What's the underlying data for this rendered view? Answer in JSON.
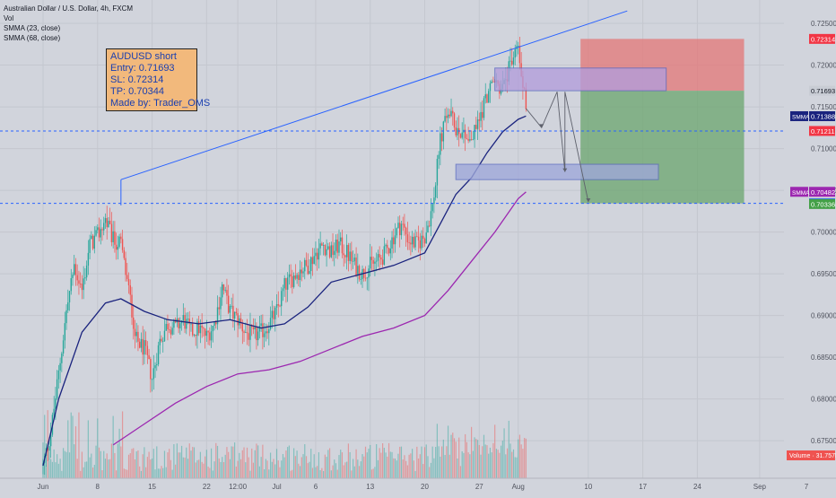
{
  "header": {
    "symbol": "Australian Dollar / U.S. Dollar, 4h, FXCM",
    "indicator_vol": "Vol",
    "indicator_smma_fast": "SMMA (23, close)",
    "indicator_smma_slow": "SMMA (68, close)"
  },
  "note": {
    "line1": "AUDUSD short",
    "line2": "Entry: 0.71693",
    "line3": "SL: 0.72314",
    "line4": "TP: 0.70344",
    "line5": "Made by: Trader_OMS"
  },
  "colors": {
    "background": "#d1d4dc",
    "up_candle": "#26a69a",
    "down_candle": "#ef5350",
    "smma_fast": "#1a237e",
    "smma_slow": "#9c27b0",
    "trendline": "#2962ff",
    "stop_zone": "#e57373",
    "target_zone": "#66a36a",
    "supply_zone": "#b39ddb",
    "demand_zone": "#9fa8da"
  },
  "price_axis": {
    "ticks": [
      "0.72500",
      "0.72000",
      "0.71500",
      "0.71000",
      "0.70500",
      "0.70000",
      "0.69500",
      "0.69000",
      "0.68500",
      "0.68000",
      "0.67500"
    ],
    "labels": [
      {
        "text": "0.72314",
        "color": "#f23645",
        "price": 0.72314
      },
      {
        "text": "0.71693",
        "color": "#c8ccd4",
        "price": 0.71693
      },
      {
        "text": "0.71392",
        "color": "#d9dce3",
        "price": 0.71392
      },
      {
        "text": "0.71388",
        "color": "#1a237e",
        "price": 0.71388,
        "tag": "SMMA"
      },
      {
        "text": "0.71211",
        "color": "#f23645",
        "price": 0.71211
      },
      {
        "text": "0.70482",
        "color": "#9c27b0",
        "price": 0.70482,
        "tag": "SMMA"
      },
      {
        "text": "0.70344",
        "color": "#2962ff",
        "price": 0.70344
      },
      {
        "text": "0.70336",
        "color": "#43a047",
        "price": 0.70336
      }
    ],
    "volume_label": "Volume · 31.757K"
  },
  "time_axis": {
    "ticks": [
      "Jun",
      "8",
      "15",
      "22",
      "12:00",
      "Jul",
      "6",
      "13",
      "20",
      "27",
      "Aug",
      "10",
      "17",
      "24",
      "Sep",
      "7"
    ]
  },
  "chart_data": {
    "type": "candlestick",
    "title": "Australian Dollar / U.S. Dollar, 4h, FXCM",
    "ylim": [
      0.6705,
      0.7278
    ],
    "x_range": [
      "Jun 1",
      "Sep 7"
    ],
    "grid": true,
    "horizontal_levels": [
      0.7121,
      0.70344
    ],
    "trade_setup": {
      "entry": 0.71693,
      "stop_loss": 0.72314,
      "take_profit": 0.70344
    },
    "zones": [
      {
        "name": "supply",
        "from_date": "Jul 29",
        "to_date": "Aug 20",
        "low": 0.71693,
        "high": 0.71965
      },
      {
        "name": "demand",
        "from_date": "Jul 24",
        "to_date": "Aug 19",
        "low": 0.70628,
        "high": 0.70812
      }
    ],
    "trendline": {
      "from": [
        "Jun 11",
        0.70628
      ],
      "to": [
        "Aug 15",
        0.72649
      ]
    },
    "price_path": [
      [
        "Jun 1",
        0.672
      ],
      [
        "Jun 2",
        0.676
      ],
      [
        "Jun 3",
        0.683
      ],
      [
        "Jun 4",
        0.6905
      ],
      [
        "Jun 5",
        0.696
      ],
      [
        "Jun 6",
        0.693
      ],
      [
        "Jun 7",
        0.6985
      ],
      [
        "Jun 8",
        0.6995
      ],
      [
        "Jun 9",
        0.7015
      ],
      [
        "Jun 10",
        0.699
      ],
      [
        "Jun 11",
        0.6985
      ],
      [
        "Jun 12",
        0.693
      ],
      [
        "Jun 13",
        0.687
      ],
      [
        "Jun 14",
        0.686
      ],
      [
        "Jun 15",
        0.6825
      ],
      [
        "Jun 16",
        0.687
      ],
      [
        "Jun 17",
        0.689
      ],
      [
        "Jun 18",
        0.6885
      ],
      [
        "Jun 19",
        0.6895
      ],
      [
        "Jun 20",
        0.688
      ],
      [
        "Jun 21",
        0.6885
      ],
      [
        "Jun 22",
        0.6875
      ],
      [
        "Jun 23",
        0.689
      ],
      [
        "Jun 24",
        0.6935
      ],
      [
        "Jun 25",
        0.6905
      ],
      [
        "Jun 26",
        0.6895
      ],
      [
        "Jun 27",
        0.688
      ],
      [
        "Jun 28",
        0.6875
      ],
      [
        "Jun 29",
        0.688
      ],
      [
        "Jun 30",
        0.689
      ],
      [
        "Jul 1",
        0.6905
      ],
      [
        "Jul 2",
        0.6935
      ],
      [
        "Jul 3",
        0.6945
      ],
      [
        "Jul 4",
        0.6955
      ],
      [
        "Jul 5",
        0.696
      ],
      [
        "Jul 6",
        0.6975
      ],
      [
        "Jul 7",
        0.6985
      ],
      [
        "Jul 8",
        0.6975
      ],
      [
        "Jul 9",
        0.6985
      ],
      [
        "Jul 10",
        0.6975
      ],
      [
        "Jul 11",
        0.696
      ],
      [
        "Jul 12",
        0.695
      ],
      [
        "Jul 13",
        0.696
      ],
      [
        "Jul 14",
        0.6965
      ],
      [
        "Jul 15",
        0.6975
      ],
      [
        "Jul 16",
        0.6995
      ],
      [
        "Jul 17",
        0.701
      ],
      [
        "Jul 18",
        0.699
      ],
      [
        "Jul 19",
        0.6985
      ],
      [
        "Jul 20",
        0.6995
      ],
      [
        "Jul 21",
        0.703
      ],
      [
        "Jul 22",
        0.711
      ],
      [
        "Jul 23",
        0.7145
      ],
      [
        "Jul 24",
        0.7125
      ],
      [
        "Jul 25",
        0.712
      ],
      [
        "Jul 26",
        0.711
      ],
      [
        "Jul 27",
        0.7135
      ],
      [
        "Jul 28",
        0.7165
      ],
      [
        "Jul 29",
        0.718
      ],
      [
        "Jul 30",
        0.717
      ],
      [
        "Jul 31",
        0.72
      ],
      [
        "Aug 1",
        0.7225
      ],
      [
        "Aug 2",
        0.715
      ]
    ],
    "series": [
      {
        "name": "SMMA (23, close)",
        "values": [
          [
            "Jun 1",
            0.672
          ],
          [
            "Jun 3",
            0.68
          ],
          [
            "Jun 6",
            0.688
          ],
          [
            "Jun 9",
            0.6915
          ],
          [
            "Jun 11",
            0.692
          ],
          [
            "Jun 14",
            0.6905
          ],
          [
            "Jun 17",
            0.6895
          ],
          [
            "Jun 21",
            0.689
          ],
          [
            "Jun 25",
            0.6895
          ],
          [
            "Jun 29",
            0.6885
          ],
          [
            "Jul 2",
            0.689
          ],
          [
            "Jul 5",
            0.691
          ],
          [
            "Jul 8",
            0.694
          ],
          [
            "Jul 12",
            0.695
          ],
          [
            "Jul 16",
            0.696
          ],
          [
            "Jul 20",
            0.6975
          ],
          [
            "Jul 22",
            0.701
          ],
          [
            "Jul 24",
            0.7045
          ],
          [
            "Jul 26",
            0.7065
          ],
          [
            "Jul 28",
            0.7095
          ],
          [
            "Jul 30",
            0.712
          ],
          [
            "Aug 1",
            0.7135
          ],
          [
            "Aug 2",
            0.7139
          ]
        ]
      },
      {
        "name": "SMMA (68, close)",
        "values": [
          [
            "Jun 10",
            0.6745
          ],
          [
            "Jun 14",
            0.677
          ],
          [
            "Jun 18",
            0.6795
          ],
          [
            "Jun 22",
            0.6815
          ],
          [
            "Jun 26",
            0.683
          ],
          [
            "Jun 30",
            0.6835
          ],
          [
            "Jul 4",
            0.6845
          ],
          [
            "Jul 8",
            0.686
          ],
          [
            "Jul 12",
            0.6875
          ],
          [
            "Jul 16",
            0.6885
          ],
          [
            "Jul 20",
            0.69
          ],
          [
            "Jul 23",
            0.693
          ],
          [
            "Jul 26",
            0.6965
          ],
          [
            "Jul 29",
            0.7
          ],
          [
            "Aug 1",
            0.704
          ],
          [
            "Aug 2",
            0.7048
          ]
        ]
      }
    ]
  }
}
